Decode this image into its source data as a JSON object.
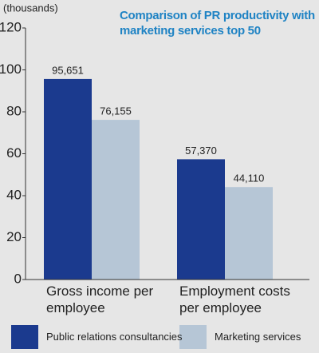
{
  "chart_data": {
    "type": "bar",
    "title": "Comparison of PR productivity with marketing services top 50",
    "y_label": "(thousands)",
    "categories": [
      "Gross income per employee",
      "Employment costs per employee"
    ],
    "series": [
      {
        "name": "Public relations consultancies",
        "color": "#1b3a8e",
        "values": [
          95.651,
          57.37
        ],
        "value_labels": [
          "95,651",
          "57,370"
        ]
      },
      {
        "name": "Marketing services",
        "color": "#b6c6d6",
        "values": [
          76.155,
          44.11
        ],
        "value_labels": [
          "76,155",
          "44,110"
        ]
      }
    ],
    "ylim": [
      0,
      120
    ],
    "yticks": [
      0,
      20,
      40,
      60,
      80,
      100,
      120
    ]
  }
}
